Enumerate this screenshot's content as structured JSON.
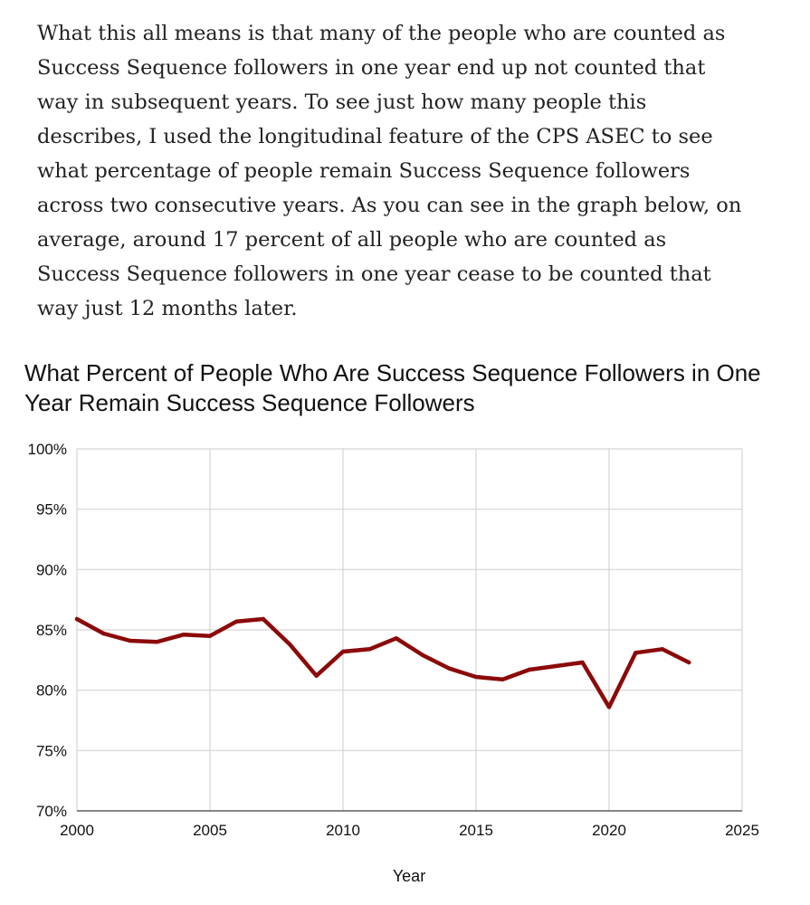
{
  "article": {
    "paragraph": "What this all means is that many of the people who are counted as Success Sequence followers in one year end up not counted that way in subsequent years. To see just how many people this describes, I used the longitudinal feature of the CPS ASEC to see what percentage of people remain Success Sequence followers across two consecutive years. As you can see in the graph below, on average, around 17 percent of all people who are counted as Success Sequence followers in one year cease to be counted that way just 12 months later."
  },
  "chart_data": {
    "type": "line",
    "title": "What Percent of People Who Are Success Sequence Followers in One Year Remain Success Sequence Followers",
    "xlabel": "Year",
    "ylabel": "",
    "xlim": [
      2000,
      2025
    ],
    "ylim": [
      70,
      100
    ],
    "xticks": [
      2000,
      2005,
      2010,
      2015,
      2020,
      2025
    ],
    "yticks": [
      70,
      75,
      80,
      85,
      90,
      95,
      100
    ],
    "xtick_labels": [
      "2000",
      "2005",
      "2010",
      "2015",
      "2020",
      "2025"
    ],
    "ytick_labels": [
      "70%",
      "75%",
      "80%",
      "85%",
      "90%",
      "95%",
      "100%"
    ],
    "grid": true,
    "series": [
      {
        "color": "#8b0a0a",
        "x": [
          2000,
          2001,
          2002,
          2003,
          2004,
          2005,
          2006,
          2007,
          2008,
          2009,
          2010,
          2011,
          2012,
          2013,
          2014,
          2015,
          2016,
          2017,
          2018,
          2019,
          2020,
          2021,
          2022,
          2023
        ],
        "values": [
          85.9,
          84.7,
          84.1,
          84.0,
          84.6,
          84.5,
          85.7,
          85.9,
          83.8,
          81.2,
          83.2,
          83.4,
          84.3,
          82.9,
          81.8,
          81.1,
          80.9,
          81.7,
          82.0,
          82.3,
          78.6,
          83.1,
          83.4,
          82.3
        ]
      }
    ]
  }
}
